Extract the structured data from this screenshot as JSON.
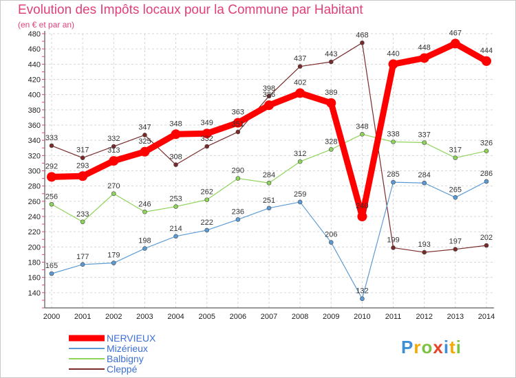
{
  "chart_data": {
    "type": "line",
    "title": "Evolution des Impôts locaux pour la Commune par Habitant",
    "subtitle": "(en € et par an)",
    "categories": [
      "2000",
      "2001",
      "2002",
      "2003",
      "2004",
      "2005",
      "2006",
      "2007",
      "2008",
      "2009",
      "2010",
      "2011",
      "2012",
      "2013",
      "2014"
    ],
    "ylim": [
      120,
      480
    ],
    "yticks": [
      140,
      160,
      180,
      200,
      220,
      240,
      260,
      280,
      300,
      320,
      340,
      360,
      380,
      400,
      420,
      440,
      460,
      480
    ],
    "grid": true,
    "legend_position": "bottom-left",
    "series": [
      {
        "name": "NERVIEUX",
        "color": "#ff0000",
        "values": [
          292,
          293,
          313,
          325,
          348,
          349,
          363,
          386,
          402,
          389,
          240,
          440,
          448,
          467,
          444
        ]
      },
      {
        "name": "Mizérieux",
        "color": "#5b9bd5",
        "values": [
          165,
          177,
          179,
          198,
          214,
          222,
          236,
          251,
          259,
          206,
          132,
          285,
          284,
          265,
          286
        ]
      },
      {
        "name": "Balbigny",
        "color": "#8fd45a",
        "values": [
          256,
          233,
          270,
          246,
          253,
          262,
          290,
          284,
          312,
          328,
          348,
          338,
          337,
          317,
          326
        ]
      },
      {
        "name": "Cleppé",
        "color": "#7a2a2a",
        "values": [
          333,
          317,
          332,
          347,
          308,
          332,
          351,
          398,
          437,
          443,
          468,
          199,
          193,
          197,
          202
        ]
      }
    ]
  },
  "logo": {
    "letters": [
      "P",
      "r",
      "o",
      "x",
      "i",
      "t",
      "i"
    ],
    "colors": [
      "#3d8fd6",
      "#f2a900",
      "#7cc242",
      "#e8432a",
      "#3d8fd6",
      "#f2a900",
      "#7cc242"
    ]
  }
}
